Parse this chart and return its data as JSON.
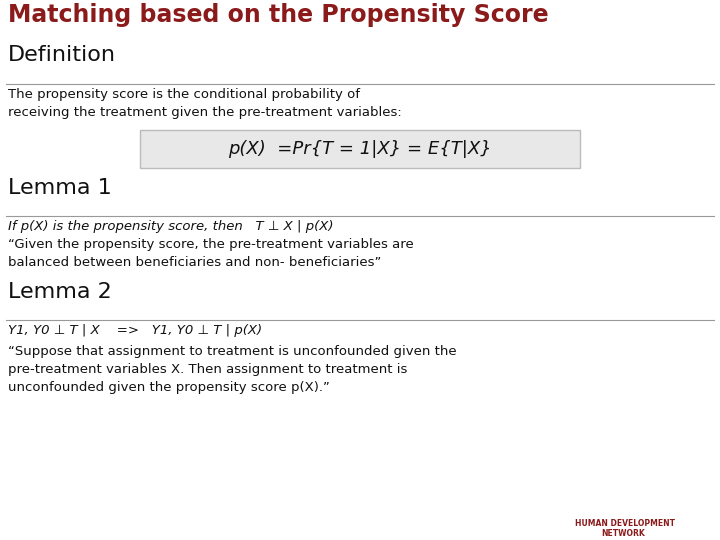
{
  "title": "Matching based on the Propensity Score",
  "title_color": "#8B1A1A",
  "bg_color": "#FFFFFF",
  "section1_heading": "Definition",
  "section1_body1": "The propensity score is the conditional probability of",
  "section1_body2": "receiving the treatment given the pre-treatment variables:",
  "formula": "p(X)  =Pr{T = 1|X} = E{T|X}",
  "section2_heading": "Lemma 1",
  "section2_italic": "If p(X) is the propensity score, then   T ⊥ X | p(X)",
  "section2_body1": "“Given the propensity score, the pre-treatment variables are",
  "section2_body2": "balanced between beneficiaries and non- beneficiaries”",
  "section3_heading": "Lemma 2",
  "section3_italic": "Y1, Y0 ⊥ T | X    =>   Y1, Y0 ⊥ T | p(X)",
  "section3_body1": "“Suppose that assignment to treatment is unconfounded given the",
  "section3_body2": "pre-treatment variables X. Then assignment to treatment is",
  "section3_body3": "unconfounded given the propensity score p(X).”",
  "hdn_line1": "HUMAN DEVELOPMENT",
  "hdn_line2": "NETWORK"
}
